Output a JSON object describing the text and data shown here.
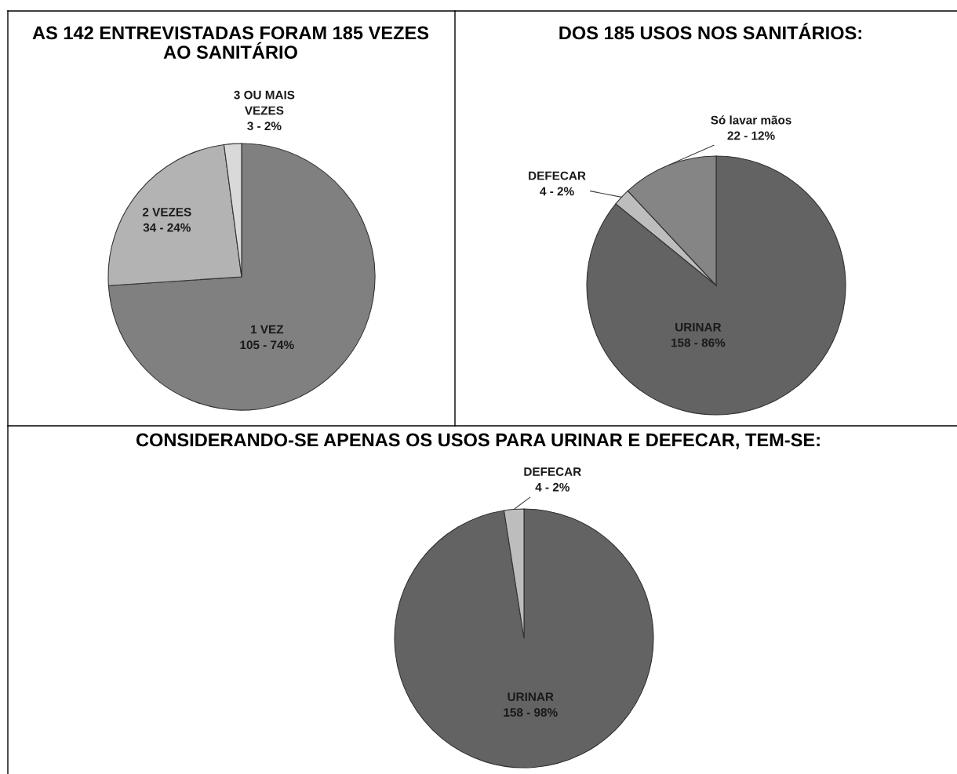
{
  "chart_data": [
    {
      "type": "pie",
      "title": "AS 142 ENTREVISTADAS FORAM 185 VEZES\nAO SANITÁRIO",
      "categories": [
        "1 VEZ",
        "2 VEZES",
        "3 OU MAIS\nVEZES"
      ],
      "values": [
        105,
        34,
        3
      ],
      "value_labels": [
        "105 - 74%",
        "34 - 24%",
        "3 - 2%"
      ],
      "colors": [
        "#808080",
        "#b3b3b3",
        "#d9d9d9"
      ]
    },
    {
      "type": "pie",
      "title": "DOS 185 USOS NOS SANITÁRIOS:",
      "categories": [
        "URINAR",
        "DEFECAR",
        "Só lavar mãos"
      ],
      "values": [
        158,
        4,
        22
      ],
      "value_labels": [
        "158 - 86%",
        "4 - 2%",
        "22 - 12%"
      ],
      "colors": [
        "#636363",
        "#bdbdbd",
        "#858585"
      ]
    },
    {
      "type": "pie",
      "title": "CONSIDERANDO-SE APENAS OS USOS PARA URINAR E DEFECAR, TEM-SE:",
      "categories": [
        "URINAR",
        "DEFECAR"
      ],
      "values": [
        158,
        4
      ],
      "value_labels": [
        "158 - 98%",
        "4 - 2%"
      ],
      "colors": [
        "#636363",
        "#bdbdbd"
      ]
    }
  ]
}
